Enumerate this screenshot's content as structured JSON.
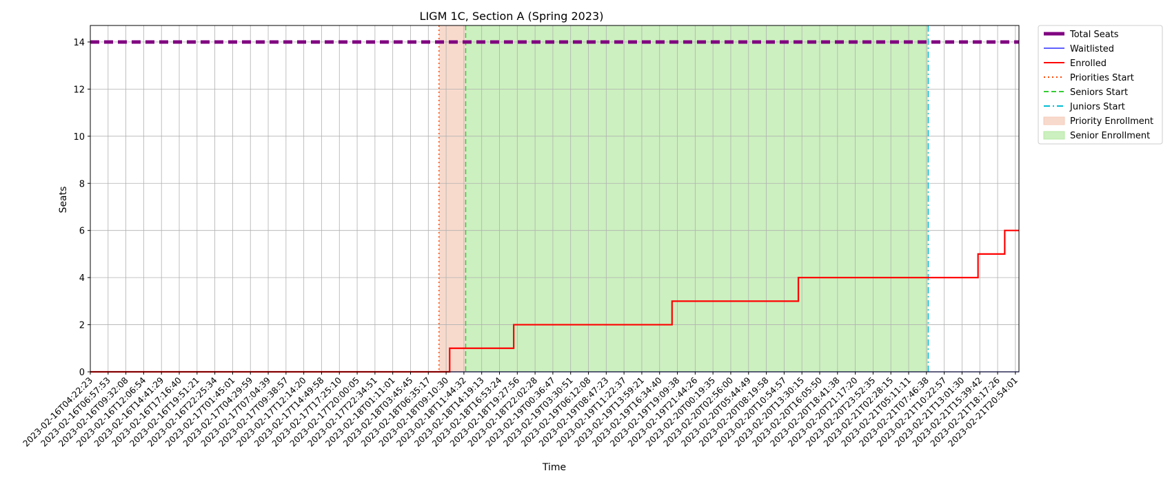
{
  "chart_data": {
    "type": "line",
    "title": "LIGM 1C, Section A (Spring 2023)",
    "xlabel": "Time",
    "ylabel": "Seats",
    "ylim": [
      0,
      14.7
    ],
    "y_ticks": [
      0,
      2,
      4,
      6,
      8,
      10,
      12,
      14
    ],
    "grid": true,
    "legend_position": "outside-right",
    "x_tick_labels": [
      "2023-02-16T04:22:23",
      "2023-02-16T06:57:53",
      "2023-02-16T09:32:08",
      "2023-02-16T12:06:54",
      "2023-02-16T14:41:29",
      "2023-02-16T17:16:40",
      "2023-02-16T19:51:21",
      "2023-02-16T22:25:34",
      "2023-02-17T01:45:01",
      "2023-02-17T04:29:59",
      "2023-02-17T07:04:39",
      "2023-02-17T09:38:57",
      "2023-02-17T12:14:20",
      "2023-02-17T14:49:58",
      "2023-02-17T17:25:10",
      "2023-02-17T20:00:05",
      "2023-02-17T22:34:51",
      "2023-02-18T01:11:01",
      "2023-02-18T03:45:45",
      "2023-02-18T06:35:17",
      "2023-02-18T09:10:30",
      "2023-02-18T11:44:32",
      "2023-02-18T14:19:13",
      "2023-02-18T16:53:24",
      "2023-02-18T19:27:56",
      "2023-02-18T22:02:28",
      "2023-02-19T00:36:47",
      "2023-02-19T03:30:51",
      "2023-02-19T06:12:08",
      "2023-02-19T08:47:23",
      "2023-02-19T11:22:37",
      "2023-02-19T13:59:21",
      "2023-02-19T16:34:40",
      "2023-02-19T19:09:38",
      "2023-02-19T21:44:26",
      "2023-02-20T00:19:35",
      "2023-02-20T02:56:00",
      "2023-02-20T05:44:49",
      "2023-02-20T08:19:58",
      "2023-02-20T10:54:57",
      "2023-02-20T13:30:15",
      "2023-02-20T16:05:50",
      "2023-02-20T18:41:38",
      "2023-02-20T21:17:20",
      "2023-02-20T23:52:35",
      "2023-02-21T02:28:15",
      "2023-02-21T05:11:11",
      "2023-02-21T07:46:38",
      "2023-02-21T10:22:57",
      "2023-02-21T13:01:30",
      "2023-02-21T15:39:42",
      "2023-02-21T18:17:26",
      "2023-02-21T20:54:01"
    ],
    "x_range": [
      0,
      52.2
    ],
    "series": [
      {
        "name": "Total Seats",
        "color": "#800080",
        "style": "dashed-thick",
        "points": [
          [
            0,
            14
          ],
          [
            52.2,
            14
          ]
        ]
      },
      {
        "name": "Waitlisted",
        "color": "#0000ff",
        "style": "solid-thin",
        "points": [
          [
            0,
            0
          ],
          [
            52.2,
            0
          ]
        ]
      },
      {
        "name": "Enrolled",
        "color": "#ff0000",
        "style": "solid",
        "points": [
          [
            0,
            0
          ],
          [
            20.2,
            0
          ],
          [
            20.2,
            1
          ],
          [
            23.8,
            1
          ],
          [
            23.8,
            2
          ],
          [
            32.7,
            2
          ],
          [
            32.7,
            3
          ],
          [
            39.8,
            3
          ],
          [
            39.8,
            4
          ],
          [
            49.9,
            4
          ],
          [
            49.9,
            5
          ],
          [
            51.4,
            5
          ],
          [
            51.4,
            6
          ],
          [
            52.2,
            6
          ]
        ]
      }
    ],
    "vlines": [
      {
        "name": "Priorities Start",
        "x": 19.6,
        "color": "#ff4500",
        "style": "dotted"
      },
      {
        "name": "Seniors Start",
        "x": 21.1,
        "color": "#32cd32",
        "style": "dashed"
      },
      {
        "name": "Juniors Start",
        "x": 47.1,
        "color": "#00bcd4",
        "style": "dashdot"
      }
    ],
    "spans": [
      {
        "name": "Priority Enrollment",
        "from": 19.6,
        "to": 21.1,
        "color": "#f5cbb8"
      },
      {
        "name": "Senior Enrollment",
        "from": 21.1,
        "to": 47.1,
        "color": "#b6eaa4"
      }
    ],
    "legend": [
      {
        "label": "Total Seats",
        "kind": "line",
        "color": "#800080",
        "style": "thick"
      },
      {
        "label": "Waitlisted",
        "kind": "line",
        "color": "#0000ff",
        "style": "solid-thin"
      },
      {
        "label": "Enrolled",
        "kind": "line",
        "color": "#ff0000",
        "style": "solid"
      },
      {
        "label": "Priorities Start",
        "kind": "line",
        "color": "#ff4500",
        "style": "dotted"
      },
      {
        "label": "Seniors Start",
        "kind": "line",
        "color": "#32cd32",
        "style": "dashed"
      },
      {
        "label": "Juniors Start",
        "kind": "line",
        "color": "#00bcd4",
        "style": "dashdot"
      },
      {
        "label": "Priority Enrollment",
        "kind": "patch",
        "color": "#f5cbb8"
      },
      {
        "label": "Senior Enrollment",
        "kind": "patch",
        "color": "#b6eaa4"
      }
    ]
  }
}
